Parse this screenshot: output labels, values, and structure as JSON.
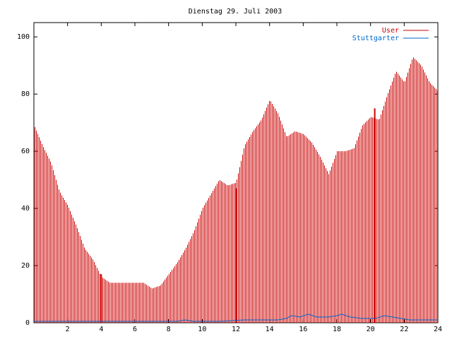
{
  "chart_data": {
    "type": "bar",
    "title": "Dienstag 29. Juli 2003",
    "xlabel": "",
    "ylabel": "",
    "xlim": [
      0,
      24
    ],
    "ylim": [
      0,
      105
    ],
    "xticks": [
      "2",
      "4",
      "6",
      "8",
      "10",
      "12",
      "14",
      "16",
      "18",
      "20",
      "22",
      "24"
    ],
    "yticks": [
      "0",
      "20",
      "40",
      "60",
      "80",
      "100"
    ],
    "grid": false,
    "legend_position": "top-right",
    "series": [
      {
        "name": "User",
        "color": "#cc0000",
        "style": "impulses",
        "x": [
          0.0,
          0.5,
          1.0,
          1.5,
          2.0,
          2.5,
          3.0,
          3.5,
          4.0,
          4.5,
          5.0,
          5.5,
          6.0,
          6.5,
          7.0,
          7.5,
          8.0,
          8.5,
          9.0,
          9.5,
          10.0,
          10.5,
          11.0,
          11.5,
          12.0,
          12.5,
          13.0,
          13.5,
          14.0,
          14.5,
          15.0,
          15.5,
          16.0,
          16.5,
          17.0,
          17.5,
          18.0,
          18.5,
          19.0,
          19.5,
          20.0,
          20.5,
          21.0,
          21.5,
          22.0,
          22.5,
          23.0,
          23.5,
          24.0
        ],
        "values": [
          69,
          62,
          56,
          46,
          41,
          34,
          26,
          22,
          16,
          14,
          14,
          14,
          14,
          14,
          12,
          13,
          17,
          21,
          26,
          32,
          40,
          45,
          50,
          48,
          49,
          62,
          67,
          71,
          78,
          73,
          65,
          67,
          66,
          63,
          58,
          52,
          60,
          60,
          61,
          69,
          72,
          71,
          80,
          88,
          84,
          93,
          90,
          84,
          81
        ]
      },
      {
        "name": "Stuttgarter",
        "color": "#0066cc",
        "style": "line",
        "x": [
          0.0,
          8.5,
          9.0,
          9.5,
          11.0,
          12.5,
          14.5,
          15.0,
          15.3,
          15.8,
          16.3,
          16.8,
          17.5,
          18.0,
          18.3,
          18.8,
          19.5,
          20.3,
          20.8,
          21.3,
          21.8,
          22.3,
          24.0
        ],
        "values": [
          0.5,
          0.5,
          1,
          0.5,
          0.5,
          1,
          1,
          1.5,
          2.5,
          2,
          3,
          2,
          2,
          2.5,
          3,
          2,
          1.5,
          1.5,
          2.5,
          2,
          1.5,
          1,
          1
        ]
      }
    ],
    "markers": [
      {
        "x": 4.0,
        "value": 17
      },
      {
        "x": 12.0,
        "value": 47
      },
      {
        "x": 20.25,
        "value": 75
      }
    ]
  }
}
